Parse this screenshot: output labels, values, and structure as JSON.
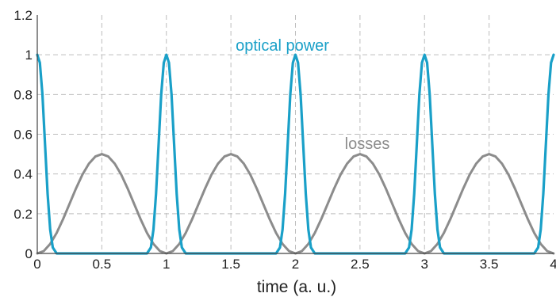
{
  "chart_data": {
    "type": "line",
    "xlabel": "time (a. u.)",
    "ylabel": "",
    "xlim": [
      0,
      4
    ],
    "ylim": [
      0,
      1.2
    ],
    "xticks": [
      "0",
      "0.5",
      "1",
      "1.5",
      "2",
      "2.5",
      "3",
      "3.5",
      "4"
    ],
    "yticks": [
      "0",
      "0.2",
      "0.4",
      "0.6",
      "0.8",
      "1",
      "1.2"
    ],
    "grid": true,
    "annotations": [
      {
        "text": "optical power",
        "color": "#1aa0c8"
      },
      {
        "text": "losses",
        "color": "#8c8c8c"
      }
    ],
    "series": [
      {
        "label": "optical power",
        "color": "#1aa0c8",
        "x": [
          0,
          0.02,
          0.04,
          0.06,
          0.08,
          0.1,
          0.12,
          0.15,
          0.85,
          0.88,
          0.9,
          0.92,
          0.94,
          0.96,
          0.98,
          1,
          1.02,
          1.04,
          1.06,
          1.08,
          1.1,
          1.12,
          1.15,
          1.85,
          1.88,
          1.9,
          1.92,
          1.94,
          1.96,
          1.98,
          2,
          2.02,
          2.04,
          2.06,
          2.08,
          2.1,
          2.12,
          2.15,
          2.85,
          2.88,
          2.9,
          2.92,
          2.94,
          2.96,
          2.98,
          3,
          3.02,
          3.04,
          3.06,
          3.08,
          3.1,
          3.12,
          3.15,
          3.85,
          3.88,
          3.9,
          3.92,
          3.94,
          3.96,
          3.98,
          4
        ],
        "y": [
          1,
          0.96,
          0.8,
          0.55,
          0.3,
          0.12,
          0.03,
          0,
          0,
          0.03,
          0.12,
          0.3,
          0.55,
          0.8,
          0.96,
          1,
          0.96,
          0.8,
          0.55,
          0.3,
          0.12,
          0.03,
          0,
          0,
          0.03,
          0.12,
          0.3,
          0.55,
          0.8,
          0.96,
          1,
          0.96,
          0.8,
          0.55,
          0.3,
          0.12,
          0.03,
          0,
          0,
          0.03,
          0.12,
          0.3,
          0.55,
          0.8,
          0.96,
          1,
          0.96,
          0.8,
          0.55,
          0.3,
          0.12,
          0.03,
          0,
          0,
          0.03,
          0.12,
          0.3,
          0.55,
          0.8,
          0.96,
          1
        ]
      },
      {
        "label": "losses",
        "color": "#8c8c8c",
        "x": [
          0,
          0.05,
          0.1,
          0.15,
          0.2,
          0.25,
          0.3,
          0.35,
          0.4,
          0.45,
          0.5,
          0.55,
          0.6,
          0.65,
          0.7,
          0.75,
          0.8,
          0.85,
          0.9,
          0.95,
          1,
          1.05,
          1.1,
          1.15,
          1.2,
          1.25,
          1.3,
          1.35,
          1.4,
          1.45,
          1.5,
          1.55,
          1.6,
          1.65,
          1.7,
          1.75,
          1.8,
          1.85,
          1.9,
          1.95,
          2,
          2.05,
          2.1,
          2.15,
          2.2,
          2.25,
          2.3,
          2.35,
          2.4,
          2.45,
          2.5,
          2.55,
          2.6,
          2.65,
          2.7,
          2.75,
          2.8,
          2.85,
          2.9,
          2.95,
          3,
          3.05,
          3.1,
          3.15,
          3.2,
          3.25,
          3.3,
          3.35,
          3.4,
          3.45,
          3.5,
          3.55,
          3.6,
          3.65,
          3.7,
          3.75,
          3.8,
          3.85,
          3.9,
          3.95,
          4
        ],
        "y": [
          0,
          0.012,
          0.048,
          0.103,
          0.173,
          0.25,
          0.327,
          0.397,
          0.452,
          0.488,
          0.5,
          0.488,
          0.452,
          0.397,
          0.327,
          0.25,
          0.173,
          0.103,
          0.048,
          0.012,
          0,
          0.012,
          0.048,
          0.103,
          0.173,
          0.25,
          0.327,
          0.397,
          0.452,
          0.488,
          0.5,
          0.488,
          0.452,
          0.397,
          0.327,
          0.25,
          0.173,
          0.103,
          0.048,
          0.012,
          0,
          0.012,
          0.048,
          0.103,
          0.173,
          0.25,
          0.327,
          0.397,
          0.452,
          0.488,
          0.5,
          0.488,
          0.452,
          0.397,
          0.327,
          0.25,
          0.173,
          0.103,
          0.048,
          0.012,
          0,
          0.012,
          0.048,
          0.103,
          0.173,
          0.25,
          0.327,
          0.397,
          0.452,
          0.488,
          0.5,
          0.488,
          0.452,
          0.397,
          0.327,
          0.25,
          0.173,
          0.103,
          0.048,
          0.012,
          0
        ]
      }
    ]
  }
}
